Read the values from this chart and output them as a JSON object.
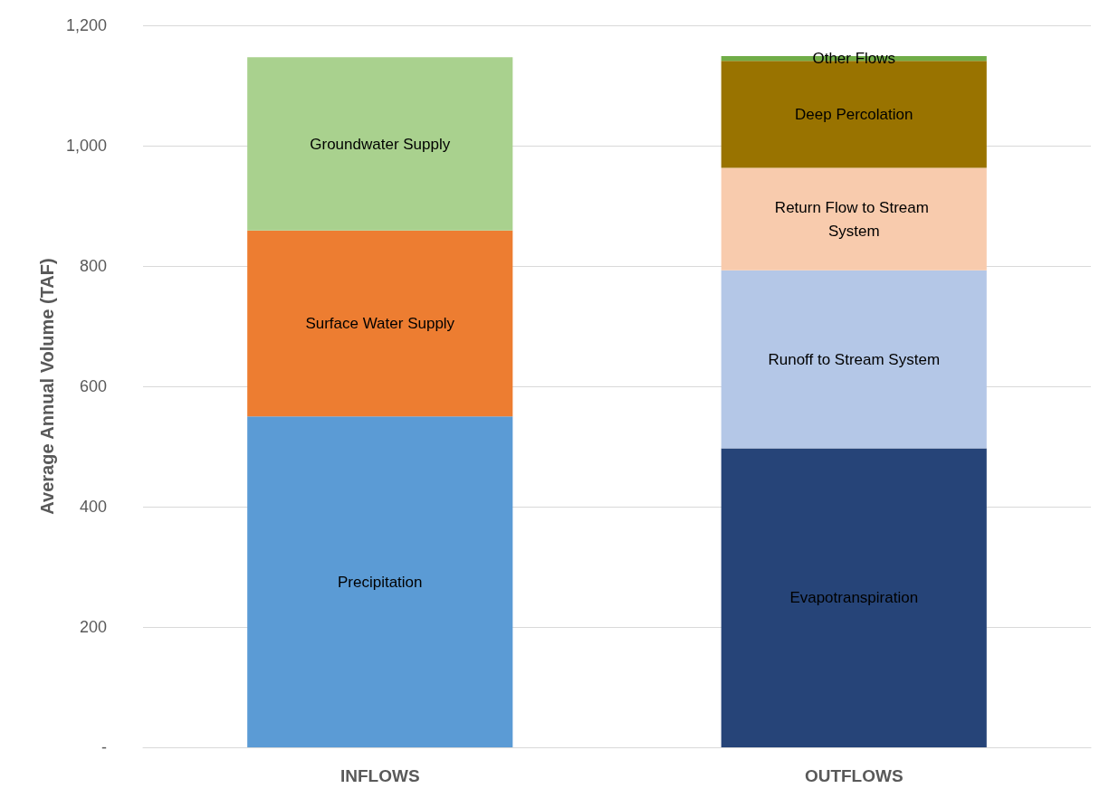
{
  "chart_data": {
    "type": "bar",
    "stacked": true,
    "ylabel": "Average Annual Volume (TAF)",
    "categories": [
      "INFLOWS",
      "OUTFLOWS"
    ],
    "series": [
      {
        "name": "Precipitation",
        "color": "#5b9bd5",
        "values": [
          550,
          null
        ]
      },
      {
        "name": "Surface Water Supply",
        "color": "#ed7d31",
        "values": [
          309,
          null
        ]
      },
      {
        "name": "Groundwater Supply",
        "color": "#a9d18e",
        "values": [
          288,
          null
        ]
      },
      {
        "name": "Evapotranspiration",
        "color": "#264478",
        "values": [
          null,
          497
        ]
      },
      {
        "name": "Runoff to Stream System",
        "color": "#b4c7e7",
        "values": [
          null,
          296
        ]
      },
      {
        "name": "Return Flow to Stream System",
        "color": "#f8cbad",
        "values": [
          null,
          170
        ]
      },
      {
        "name": "Deep Percolation",
        "color": "#997300",
        "values": [
          null,
          178
        ]
      },
      {
        "name": "Other Flows",
        "color": "#70ad47",
        "values": [
          null,
          8
        ]
      }
    ],
    "ylim": [
      0,
      1200
    ],
    "yticks": [
      {
        "value": 0,
        "label": "-"
      },
      200,
      400,
      600,
      800,
      {
        "value": 1000,
        "label": "1,000"
      },
      {
        "value": 1200,
        "label": "1,200"
      }
    ],
    "grid": "y",
    "legend": false
  }
}
